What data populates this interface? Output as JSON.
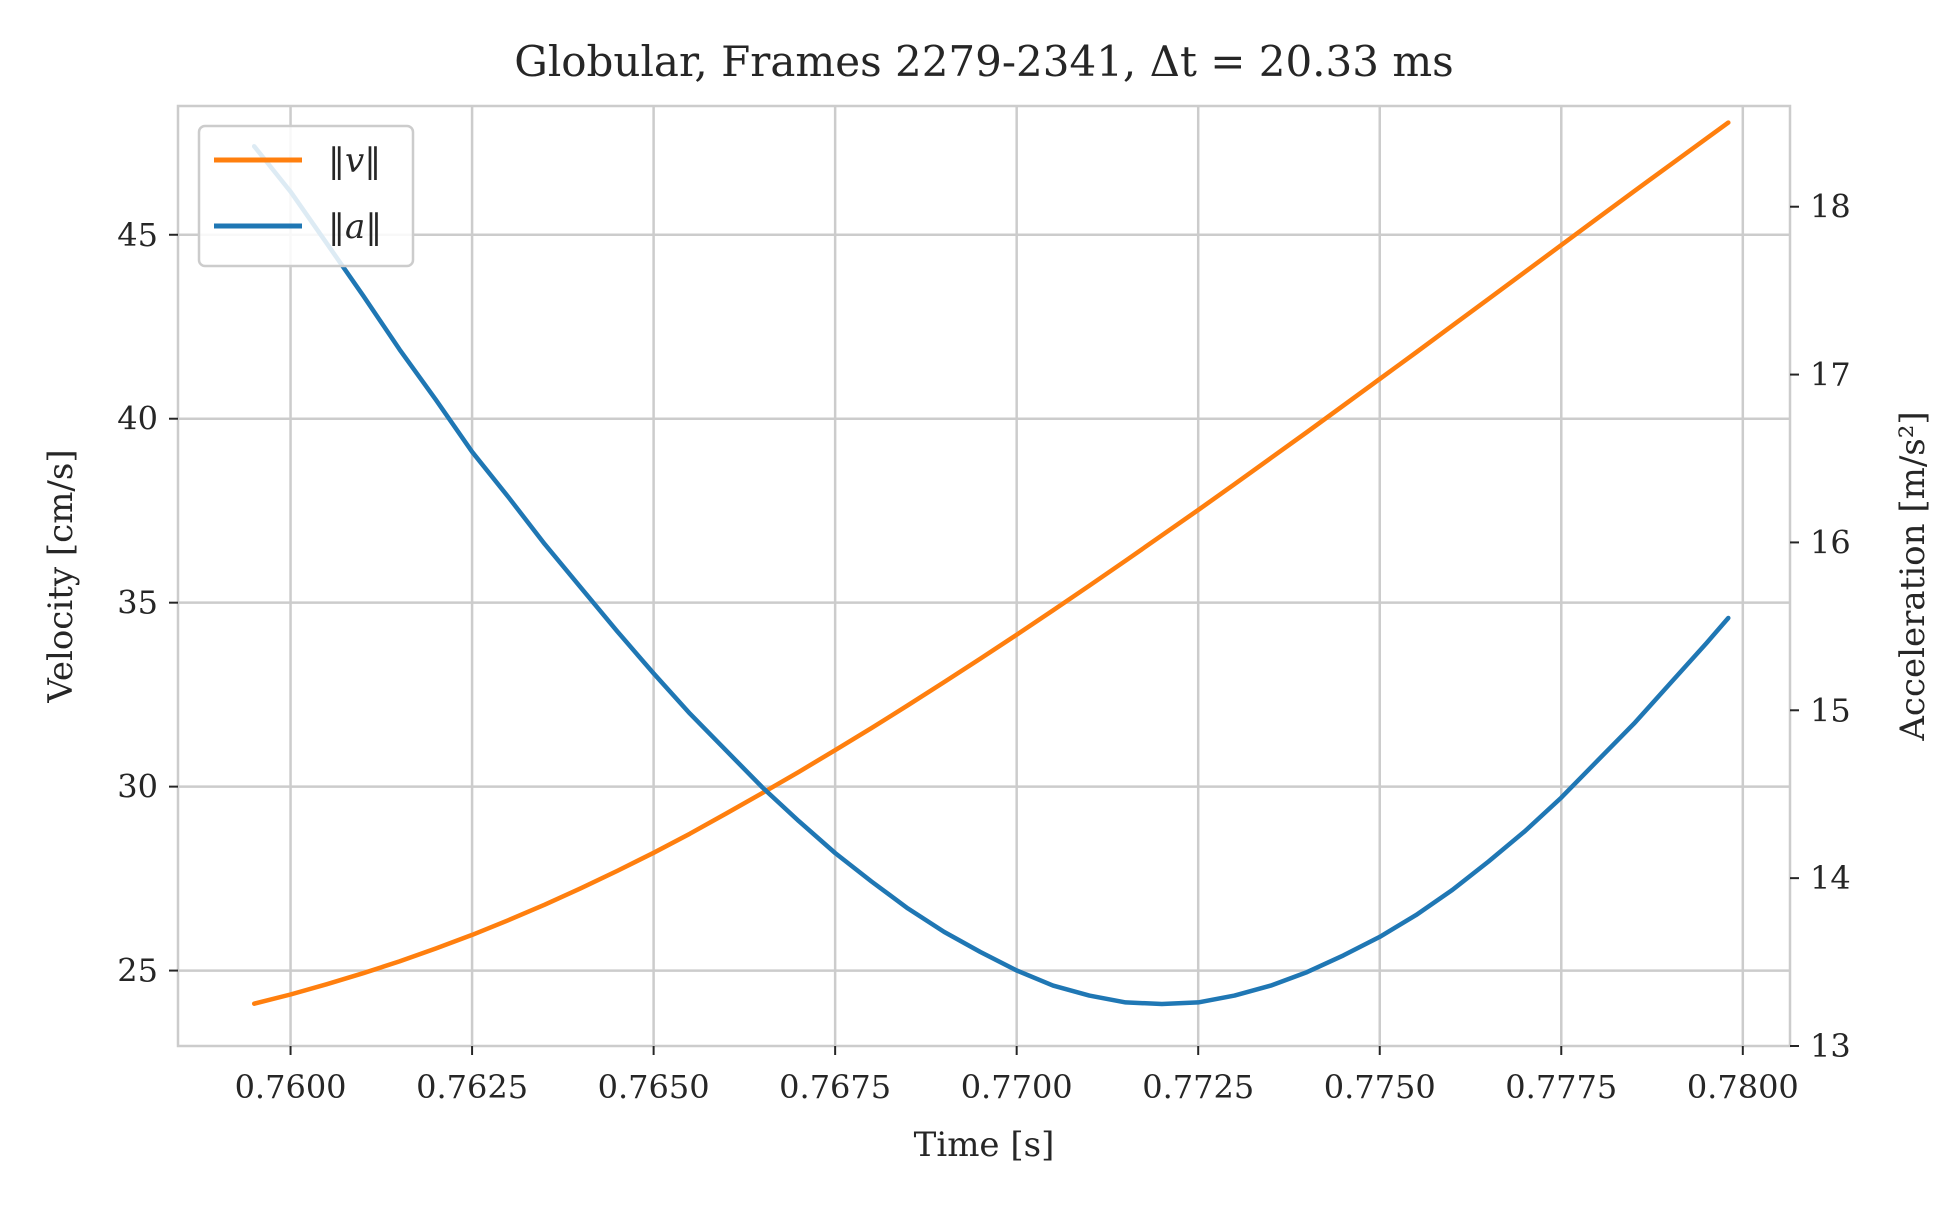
{
  "chart_data": {
    "type": "line",
    "title": "Globular, Frames 2279-2341, Δt = 20.33 ms",
    "xlabel": "Time [s]",
    "ylabel_left": "Velocity [cm/s]",
    "ylabel_right": "Acceleration [m/s²]",
    "xlim": [
      0.75845,
      0.78065
    ],
    "ylim_left": [
      22.95,
      48.5
    ],
    "ylim_right": [
      13.0,
      18.6
    ],
    "xticks": [
      0.76,
      0.7625,
      0.765,
      0.7675,
      0.77,
      0.7725,
      0.775,
      0.7775,
      0.78
    ],
    "xtick_labels": [
      "0.7600",
      "0.7625",
      "0.7650",
      "0.7675",
      "0.7700",
      "0.7725",
      "0.7750",
      "0.7775",
      "0.7800"
    ],
    "yticks_left": [
      25,
      30,
      35,
      40,
      45
    ],
    "yticks_right": [
      13,
      14,
      15,
      16,
      17,
      18
    ],
    "grid": true,
    "legend_position": "top-left",
    "series": [
      {
        "name": "‖v‖",
        "axis": "left",
        "color": "#ff7f0e",
        "x": [
          0.7595,
          0.76,
          0.7605,
          0.761,
          0.7615,
          0.762,
          0.7625,
          0.763,
          0.7635,
          0.764,
          0.7645,
          0.765,
          0.7655,
          0.766,
          0.7665,
          0.767,
          0.7675,
          0.768,
          0.7685,
          0.769,
          0.7695,
          0.77,
          0.7705,
          0.771,
          0.7715,
          0.772,
          0.7725,
          0.773,
          0.7735,
          0.774,
          0.7745,
          0.775,
          0.7755,
          0.776,
          0.7765,
          0.777,
          0.7775,
          0.778,
          0.7785,
          0.779,
          0.7795,
          0.7798
        ],
        "y": [
          24.1,
          24.35,
          24.63,
          24.93,
          25.25,
          25.6,
          25.97,
          26.37,
          26.79,
          27.24,
          27.71,
          28.2,
          28.72,
          29.27,
          29.83,
          30.4,
          30.99,
          31.59,
          32.21,
          32.84,
          33.48,
          34.13,
          34.79,
          35.46,
          36.14,
          36.83,
          37.52,
          38.22,
          38.93,
          39.64,
          40.36,
          41.08,
          41.8,
          42.53,
          43.26,
          43.99,
          44.72,
          45.45,
          46.18,
          46.9,
          47.62,
          48.05
        ]
      },
      {
        "name": "‖a‖",
        "axis": "right",
        "color": "#1f77b4",
        "x": [
          0.7595,
          0.76,
          0.7605,
          0.761,
          0.7615,
          0.762,
          0.7625,
          0.763,
          0.7635,
          0.764,
          0.7645,
          0.765,
          0.7655,
          0.766,
          0.7665,
          0.767,
          0.7675,
          0.768,
          0.7685,
          0.769,
          0.7695,
          0.77,
          0.7705,
          0.771,
          0.7715,
          0.772,
          0.7725,
          0.773,
          0.7735,
          0.774,
          0.7745,
          0.775,
          0.7755,
          0.776,
          0.7765,
          0.777,
          0.7775,
          0.778,
          0.7785,
          0.779,
          0.7795,
          0.7798
        ],
        "y": [
          18.36,
          18.09,
          17.78,
          17.47,
          17.15,
          16.85,
          16.54,
          16.27,
          15.99,
          15.73,
          15.47,
          15.22,
          14.98,
          14.76,
          14.54,
          14.34,
          14.15,
          13.98,
          13.82,
          13.68,
          13.56,
          13.45,
          13.36,
          13.3,
          13.26,
          13.25,
          13.26,
          13.3,
          13.36,
          13.44,
          13.54,
          13.65,
          13.78,
          13.93,
          14.1,
          14.28,
          14.48,
          14.7,
          14.92,
          15.16,
          15.4,
          15.55
        ]
      }
    ]
  }
}
